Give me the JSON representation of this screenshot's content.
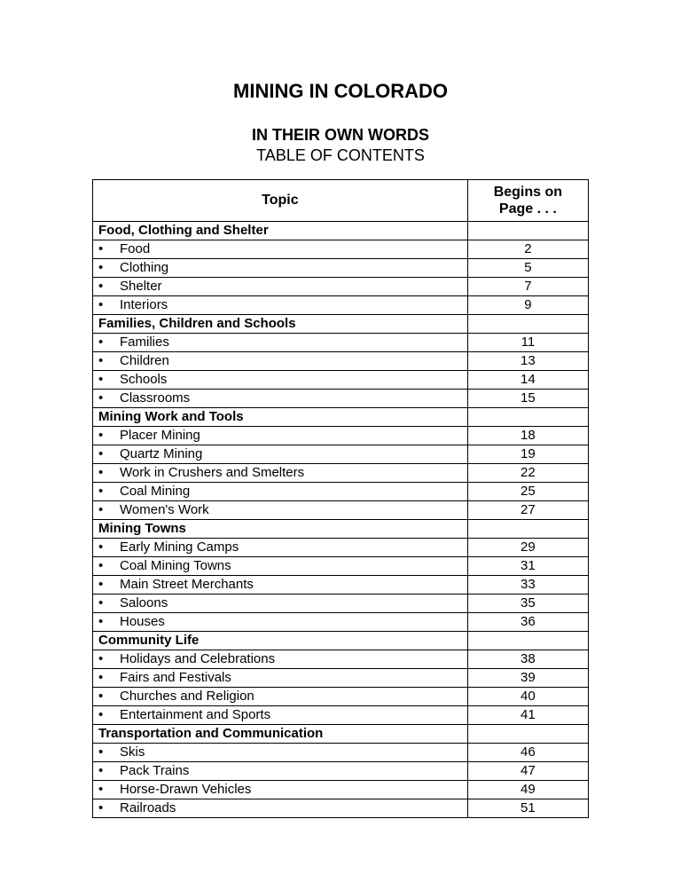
{
  "title": "MINING IN COLORADO",
  "subtitle_bold": "IN THEIR OWN WORDS",
  "subtitle": "TABLE OF CONTENTS",
  "columns": {
    "topic": "Topic",
    "page": "Begins on Page . . ."
  },
  "bullet_char": "•",
  "sections": [
    {
      "header": "Food, Clothing and Shelter",
      "items": [
        {
          "label": "Food",
          "page": "2"
        },
        {
          "label": "Clothing",
          "page": "5"
        },
        {
          "label": "Shelter",
          "page": "7"
        },
        {
          "label": "Interiors",
          "page": "9"
        }
      ]
    },
    {
      "header": "Families, Children and Schools",
      "items": [
        {
          "label": "Families",
          "page": "11"
        },
        {
          "label": "Children",
          "page": "13"
        },
        {
          "label": "Schools",
          "page": "14"
        },
        {
          "label": "Classrooms",
          "page": "15"
        }
      ]
    },
    {
      "header": "Mining Work and Tools",
      "items": [
        {
          "label": "Placer Mining",
          "page": "18"
        },
        {
          "label": "Quartz Mining",
          "page": "19"
        },
        {
          "label": "Work in Crushers and Smelters",
          "page": "22"
        },
        {
          "label": "Coal Mining",
          "page": "25"
        },
        {
          "label": "Women's Work",
          "page": "27"
        }
      ]
    },
    {
      "header": "Mining Towns",
      "items": [
        {
          "label": "Early Mining Camps",
          "page": "29"
        },
        {
          "label": "Coal Mining Towns",
          "page": "31"
        },
        {
          "label": "Main Street Merchants",
          "page": "33"
        },
        {
          "label": "Saloons",
          "page": "35"
        },
        {
          "label": "Houses",
          "page": "36"
        }
      ]
    },
    {
      "header": "Community Life",
      "items": [
        {
          "label": "Holidays and Celebrations",
          "page": "38"
        },
        {
          "label": "Fairs and Festivals",
          "page": "39"
        },
        {
          "label": "Churches and Religion",
          "page": "40"
        },
        {
          "label": "Entertainment and Sports",
          "page": "41"
        }
      ]
    },
    {
      "header": "Transportation and Communication",
      "items": [
        {
          "label": "Skis",
          "page": "46"
        },
        {
          "label": "Pack Trains",
          "page": "47"
        },
        {
          "label": "Horse-Drawn Vehicles",
          "page": "49"
        },
        {
          "label": "Railroads",
          "page": "51"
        }
      ]
    }
  ]
}
